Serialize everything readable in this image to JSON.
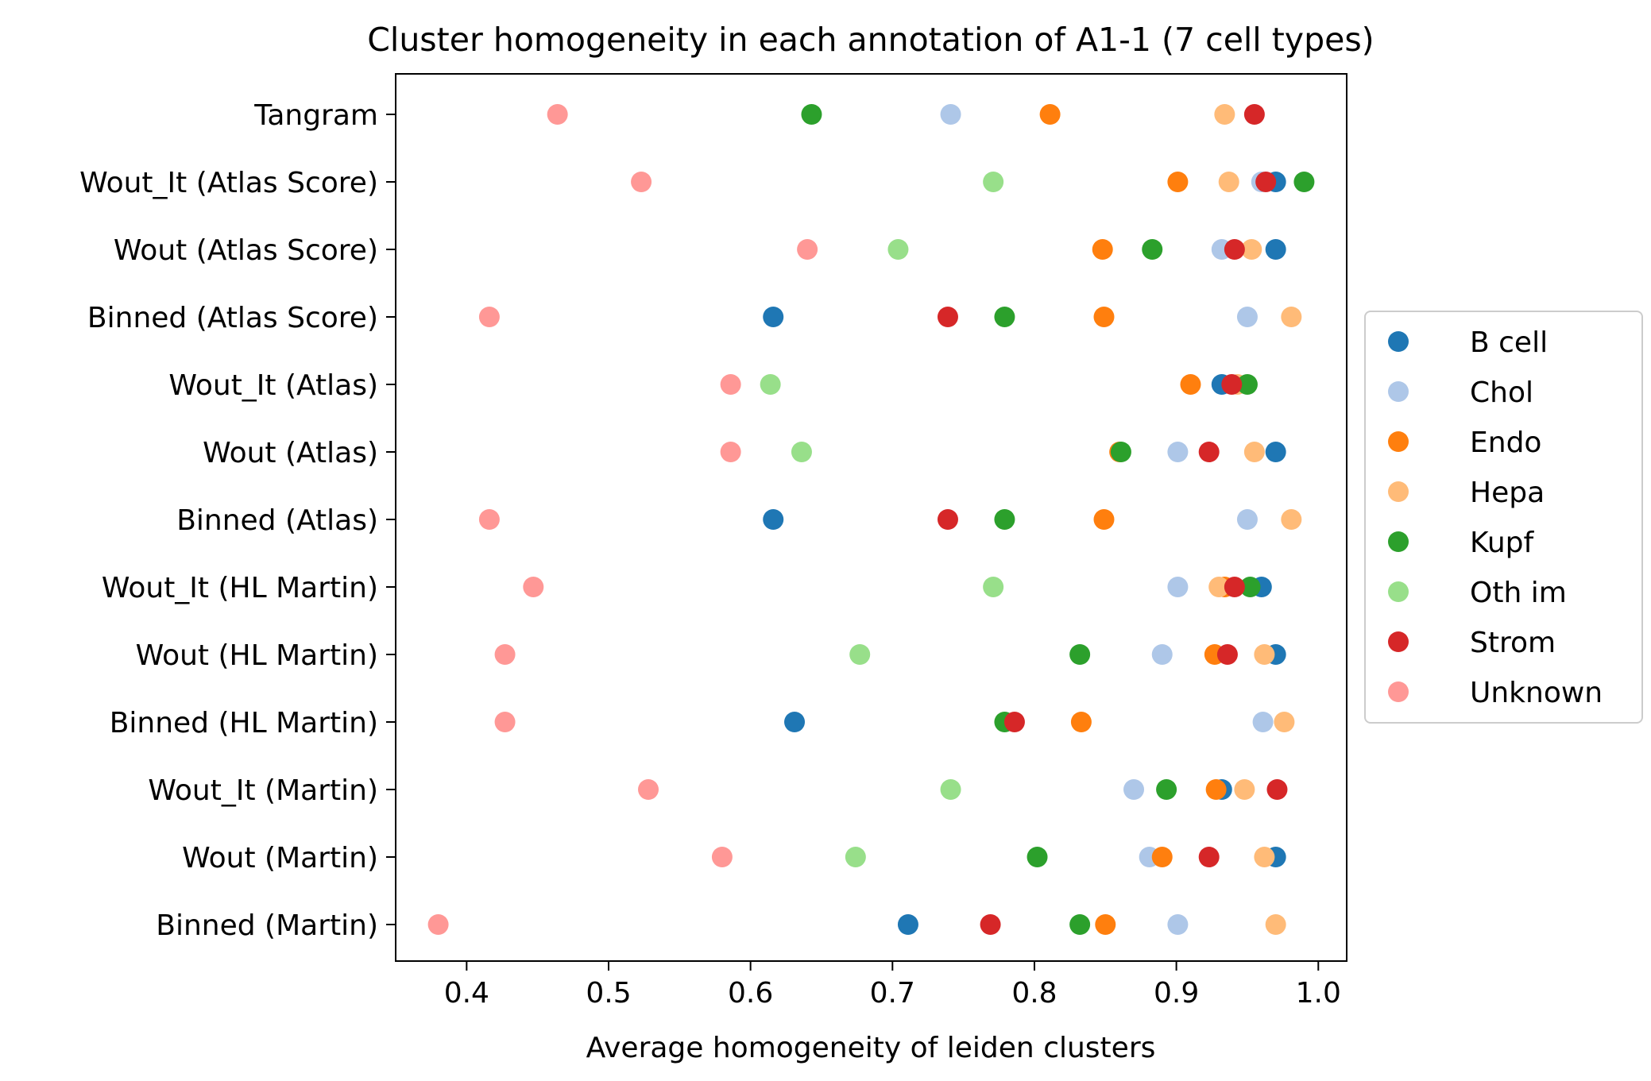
{
  "chart_data": {
    "type": "scatter",
    "title": "Cluster homogeneity in each annotation of A1-1 (7 cell types)",
    "xlabel": "Average homogeneity of leiden clusters",
    "ylabel": "",
    "xlim": [
      0.35,
      1.02
    ],
    "xticks": [
      "0.4",
      "0.5",
      "0.6",
      "0.7",
      "0.8",
      "0.9",
      "1.0"
    ],
    "categories": [
      "Tangram",
      "Wout_It (Atlas Score)",
      "Wout (Atlas Score)",
      "Binned (Atlas Score)",
      "Wout_It (Atlas)",
      "Wout (Atlas)",
      "Binned (Atlas)",
      "Wout_It (HL Martin)",
      "Wout (HL Martin)",
      "Binned (HL Martin)",
      "Wout_It (Martin)",
      "Wout (Martin)",
      "Binned (Martin)"
    ],
    "legend_position": "center-right",
    "grid": false,
    "series": [
      {
        "name": "B cell",
        "color": "#1f77b4",
        "values": [
          null,
          0.97,
          0.97,
          0.616,
          0.932,
          0.97,
          0.616,
          0.96,
          0.97,
          0.631,
          0.932,
          0.97,
          0.711
        ]
      },
      {
        "name": "Chol",
        "color": "#aec7e8",
        "values": [
          0.741,
          0.96,
          0.932,
          0.95,
          null,
          0.901,
          0.95,
          0.901,
          0.89,
          0.961,
          0.87,
          0.881,
          0.901
        ]
      },
      {
        "name": "Endo",
        "color": "#ff7f0e",
        "values": [
          0.811,
          0.901,
          0.848,
          0.849,
          0.91,
          0.86,
          0.849,
          0.934,
          0.927,
          0.833,
          0.928,
          0.89,
          0.85
        ]
      },
      {
        "name": "Hepa",
        "color": "#ffbb78",
        "values": [
          0.934,
          0.937,
          0.953,
          0.981,
          0.943,
          0.955,
          0.981,
          0.93,
          0.962,
          0.976,
          0.948,
          0.962,
          0.97
        ]
      },
      {
        "name": "Kupf",
        "color": "#2ca02c",
        "values": [
          0.643,
          0.99,
          0.883,
          0.779,
          0.95,
          0.861,
          0.779,
          0.952,
          0.832,
          0.779,
          0.893,
          0.802,
          0.832
        ]
      },
      {
        "name": "Oth im",
        "color": "#98df8a",
        "values": [
          null,
          0.771,
          0.704,
          null,
          0.614,
          0.636,
          null,
          0.771,
          0.677,
          null,
          0.741,
          0.674,
          null
        ]
      },
      {
        "name": "Strom",
        "color": "#d62728",
        "values": [
          0.955,
          0.963,
          0.941,
          0.739,
          0.939,
          0.923,
          0.739,
          0.941,
          0.936,
          0.786,
          0.971,
          0.923,
          0.769
        ]
      },
      {
        "name": "Unknown",
        "color": "#ff9896",
        "values": [
          0.464,
          0.523,
          0.64,
          0.416,
          0.586,
          0.586,
          0.416,
          0.447,
          0.427,
          0.427,
          0.528,
          0.58,
          0.38
        ]
      }
    ]
  }
}
